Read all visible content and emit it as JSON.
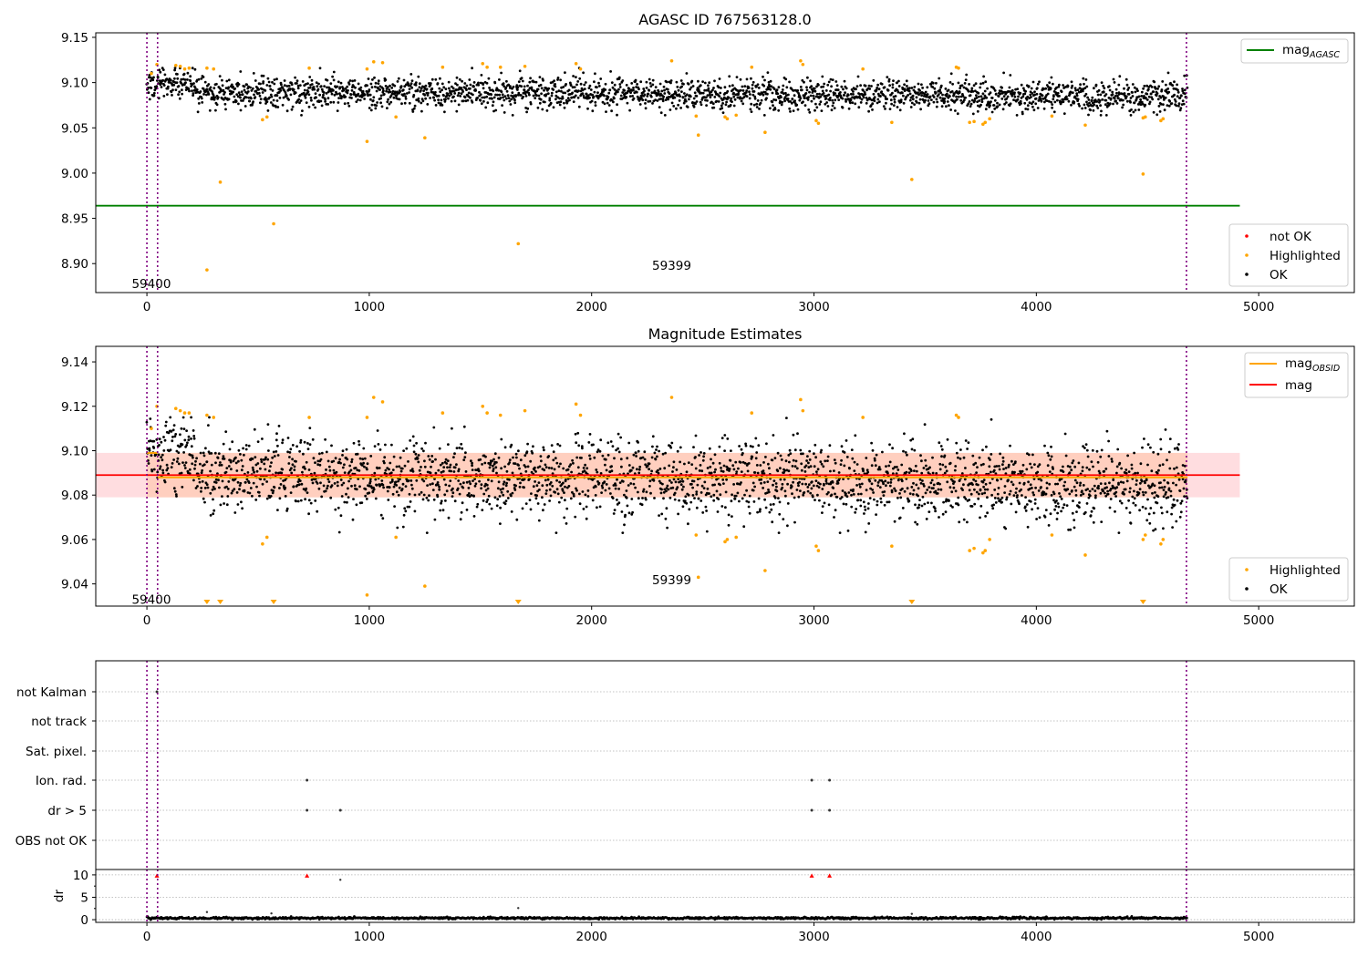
{
  "chart_data": [
    {
      "type": "scatter",
      "title": "AGASC ID 767563128.0",
      "xlabel": "",
      "ylabel": "",
      "xlim": [
        -230,
        5430
      ],
      "ylim": [
        8.868,
        9.155
      ],
      "x_ticks": [
        0,
        1000,
        2000,
        3000,
        4000,
        5000
      ],
      "x_tick_labels": [
        "0",
        "1000",
        "2000",
        "3000",
        "4000",
        "5000"
      ],
      "y_ticks": [
        8.9,
        8.95,
        9.0,
        9.05,
        9.1,
        9.15
      ],
      "y_tick_labels": [
        "8.90",
        "8.95",
        "9.00",
        "9.05",
        "9.10",
        "9.15"
      ],
      "hline": {
        "y": 8.964,
        "x_range": [
          -230,
          4915
        ],
        "color": "#008000",
        "name": "mag_AGASC"
      },
      "vlines": [
        0,
        48,
        4675
      ],
      "annotations": [
        {
          "text": "59400",
          "x": 20,
          "y": 8.878
        },
        {
          "text": "59399",
          "x": 2360,
          "y": 8.898
        }
      ],
      "ok_band": {
        "x_range": [
          0,
          4680
        ],
        "center": 9.09,
        "center_drift": -0.005,
        "spread": 0.0085,
        "count": 2600,
        "color": "#000000"
      },
      "highlighted_points": [
        [
          20,
          9.11
        ],
        [
          45,
          9.12
        ],
        [
          130,
          9.119
        ],
        [
          150,
          9.118
        ],
        [
          170,
          9.115
        ],
        [
          190,
          9.116
        ],
        [
          270,
          9.116
        ],
        [
          300,
          9.115
        ],
        [
          520,
          9.059
        ],
        [
          540,
          9.062
        ],
        [
          730,
          9.116
        ],
        [
          990,
          9.115
        ],
        [
          1020,
          9.123
        ],
        [
          1060,
          9.122
        ],
        [
          1120,
          9.062
        ],
        [
          1250,
          9.039
        ],
        [
          1330,
          9.117
        ],
        [
          1510,
          9.121
        ],
        [
          1530,
          9.117
        ],
        [
          1590,
          9.117
        ],
        [
          1700,
          9.118
        ],
        [
          1930,
          9.121
        ],
        [
          1950,
          9.115
        ],
        [
          2360,
          9.124
        ],
        [
          2470,
          9.063
        ],
        [
          2480,
          9.042
        ],
        [
          2600,
          9.062
        ],
        [
          2610,
          9.06
        ],
        [
          2650,
          9.064
        ],
        [
          2720,
          9.117
        ],
        [
          2780,
          9.045
        ],
        [
          2940,
          9.124
        ],
        [
          2950,
          9.12
        ],
        [
          3010,
          9.058
        ],
        [
          3020,
          9.055
        ],
        [
          3220,
          9.115
        ],
        [
          3350,
          9.056
        ],
        [
          3640,
          9.117
        ],
        [
          3650,
          9.116
        ],
        [
          3700,
          9.056
        ],
        [
          3720,
          9.057
        ],
        [
          3760,
          9.054
        ],
        [
          3770,
          9.056
        ],
        [
          3790,
          9.06
        ],
        [
          4070,
          9.063
        ],
        [
          4220,
          9.053
        ],
        [
          4480,
          9.061
        ],
        [
          4490,
          9.062
        ],
        [
          4560,
          9.058
        ],
        [
          4570,
          9.06
        ],
        [
          270,
          8.893
        ],
        [
          330,
          8.99
        ],
        [
          570,
          8.944
        ],
        [
          990,
          9.035
        ],
        [
          1670,
          8.922
        ],
        [
          3440,
          8.993
        ],
        [
          4480,
          8.999
        ]
      ],
      "legends": [
        {
          "position": "top-right",
          "entries": [
            {
              "kind": "line",
              "color": "#008000",
              "label": "mag",
              "sub": "AGASC"
            }
          ]
        },
        {
          "position": "bottom-right",
          "entries": [
            {
              "kind": "dot",
              "color": "#ff0000",
              "label": "not OK"
            },
            {
              "kind": "dot",
              "color": "#ffa500",
              "label": "Highlighted"
            },
            {
              "kind": "dot",
              "color": "#000000",
              "label": "OK"
            }
          ]
        }
      ]
    },
    {
      "type": "scatter",
      "title": "Magnitude Estimates",
      "xlabel": "",
      "ylabel": "",
      "xlim": [
        -230,
        5430
      ],
      "ylim": [
        9.03,
        9.147
      ],
      "x_ticks": [
        0,
        1000,
        2000,
        3000,
        4000,
        5000
      ],
      "x_tick_labels": [
        "0",
        "1000",
        "2000",
        "3000",
        "4000",
        "5000"
      ],
      "y_ticks": [
        9.04,
        9.06,
        9.08,
        9.1,
        9.12,
        9.14
      ],
      "y_tick_labels": [
        "9.04",
        "9.06",
        "9.08",
        "9.10",
        "9.12",
        "9.14"
      ],
      "band_full": {
        "y_range": [
          9.079,
          9.099
        ],
        "x_range": [
          -230,
          4915
        ],
        "color": "#ffdde0"
      },
      "band_obsid": {
        "y_range": [
          9.079,
          9.099
        ],
        "x_range": [
          0,
          4680
        ],
        "color": "#ffcfbf"
      },
      "hline_mag": {
        "y": 9.089,
        "x_range": [
          -230,
          4915
        ],
        "color": "#ff0000",
        "name": "mag"
      },
      "obsid_segments": [
        {
          "x_range": [
            0,
            48
          ],
          "y": 9.099
        },
        {
          "x_range": [
            48,
            4680
          ],
          "y": 9.088
        }
      ],
      "vlines": [
        0,
        48,
        4675
      ],
      "annotations": [
        {
          "text": "59400",
          "x": 20,
          "y": 9.033
        },
        {
          "text": "59399",
          "x": 2360,
          "y": 9.042
        }
      ],
      "ok_band": {
        "x_range": [
          0,
          4680
        ],
        "center": 9.089,
        "center_drift": -0.004,
        "spread": 0.0085,
        "count": 2600,
        "color": "#000000"
      },
      "highlighted_points": [
        [
          20,
          9.11
        ],
        [
          45,
          9.12
        ],
        [
          130,
          9.119
        ],
        [
          150,
          9.118
        ],
        [
          170,
          9.117
        ],
        [
          190,
          9.117
        ],
        [
          270,
          9.116
        ],
        [
          300,
          9.115
        ],
        [
          520,
          9.058
        ],
        [
          540,
          9.061
        ],
        [
          730,
          9.115
        ],
        [
          990,
          9.115
        ],
        [
          1020,
          9.124
        ],
        [
          1060,
          9.122
        ],
        [
          1120,
          9.061
        ],
        [
          1250,
          9.039
        ],
        [
          1330,
          9.117
        ],
        [
          1510,
          9.12
        ],
        [
          1530,
          9.117
        ],
        [
          1590,
          9.116
        ],
        [
          1700,
          9.118
        ],
        [
          1930,
          9.121
        ],
        [
          1950,
          9.116
        ],
        [
          2360,
          9.124
        ],
        [
          2470,
          9.062
        ],
        [
          2480,
          9.043
        ],
        [
          2600,
          9.059
        ],
        [
          2610,
          9.06
        ],
        [
          2650,
          9.061
        ],
        [
          2720,
          9.117
        ],
        [
          2780,
          9.046
        ],
        [
          2940,
          9.123
        ],
        [
          2950,
          9.118
        ],
        [
          3010,
          9.057
        ],
        [
          3020,
          9.055
        ],
        [
          3220,
          9.115
        ],
        [
          3350,
          9.057
        ],
        [
          3640,
          9.116
        ],
        [
          3650,
          9.115
        ],
        [
          3700,
          9.055
        ],
        [
          3720,
          9.056
        ],
        [
          3760,
          9.054
        ],
        [
          3770,
          9.055
        ],
        [
          3790,
          9.06
        ],
        [
          4070,
          9.062
        ],
        [
          4220,
          9.053
        ],
        [
          4480,
          9.06
        ],
        [
          4490,
          9.062
        ],
        [
          4560,
          9.058
        ],
        [
          4570,
          9.06
        ],
        [
          990,
          9.035
        ]
      ],
      "offscale_points": [
        270,
        330,
        570,
        1670,
        3440,
        4480
      ],
      "legends": [
        {
          "position": "top-right",
          "entries": [
            {
              "kind": "line",
              "color": "#ffa500",
              "label": "mag",
              "sub": "OBSID"
            },
            {
              "kind": "line",
              "color": "#ff0000",
              "label": "mag"
            }
          ]
        },
        {
          "position": "bottom-right",
          "entries": [
            {
              "kind": "dot",
              "color": "#ffa500",
              "label": "Highlighted"
            },
            {
              "kind": "dot",
              "color": "#000000",
              "label": "OK"
            }
          ]
        }
      ]
    },
    {
      "type": "scatter",
      "title": "",
      "xlabel": "",
      "ylabel": "",
      "xlim": [
        -230,
        5430
      ],
      "categories": [
        "not Kalman",
        "not track",
        "Sat. pixel.",
        "Ion. rad.",
        "dr > 5",
        "OBS not OK"
      ],
      "flag_points": [
        {
          "category": "not Kalman",
          "x": [
            45
          ]
        },
        {
          "category": "Ion. rad.",
          "x": [
            720,
            2990,
            3070
          ]
        },
        {
          "category": "dr > 5",
          "x": [
            720,
            870,
            2990,
            3070
          ]
        }
      ],
      "vlines": [
        0,
        48,
        4675
      ]
    },
    {
      "type": "scatter",
      "title": "",
      "xlabel": "",
      "ylabel": "dr",
      "xlim": [
        -230,
        5430
      ],
      "ylim": [
        -0.6,
        11.2
      ],
      "x_ticks": [
        0,
        1000,
        2000,
        3000,
        4000,
        5000
      ],
      "x_tick_labels": [
        "0",
        "1000",
        "2000",
        "3000",
        "4000",
        "5000"
      ],
      "y_ticks": [
        0,
        5,
        10
      ],
      "y_tick_labels": [
        "0",
        "5",
        "10"
      ],
      "baseline": {
        "x_range": [
          0,
          4680
        ],
        "center": 0.35,
        "spread": 0.12,
        "count": 1400
      },
      "spikes": [
        [
          270,
          1.7
        ],
        [
          560,
          1.4
        ],
        [
          1670,
          2.6
        ],
        [
          3440,
          1.3
        ],
        [
          870,
          8.9
        ]
      ],
      "red_points": [
        [
          45,
          9.8
        ],
        [
          720,
          9.8
        ],
        [
          2990,
          9.8
        ],
        [
          3070,
          9.8
        ]
      ],
      "vlines": [
        0,
        48,
        4675
      ]
    }
  ]
}
